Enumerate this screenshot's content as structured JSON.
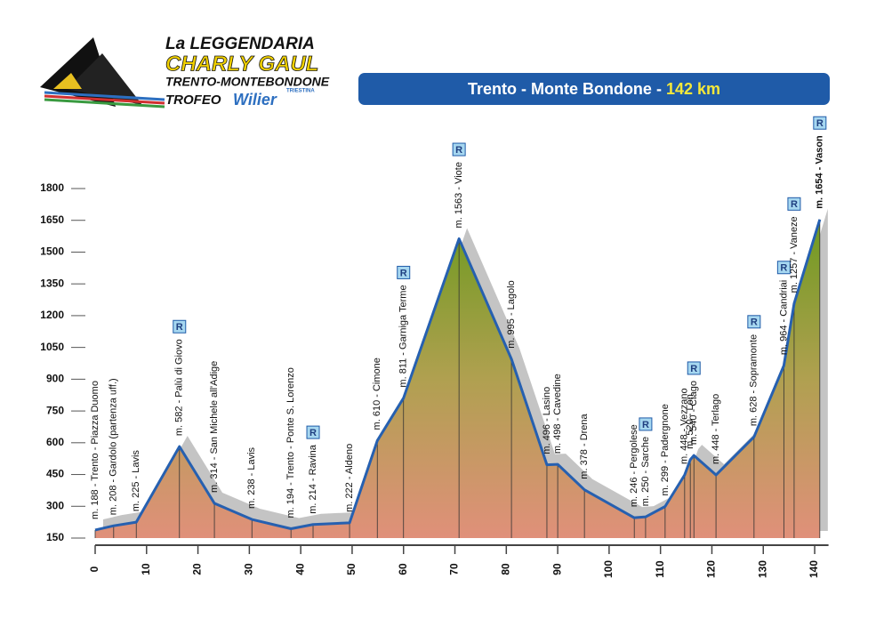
{
  "header": {
    "logo_line1": "La LEGGENDARIA",
    "logo_line2": "CHARLY GAUL",
    "logo_line3": "TRENTO-MONTEBONDONE",
    "logo_line4": "TROFEO",
    "logo_brand": "Wilier",
    "logo_brand_sub": "TRIESTINA",
    "banner": "Trento - Monte Bondone -",
    "banner_distance": "142 km"
  },
  "chart_data": {
    "type": "area",
    "x": [
      0,
      3.6,
      8,
      16.4,
      23.2,
      30.5,
      38.1,
      42.4,
      49.5,
      54.9,
      60,
      70.8,
      81,
      87.9,
      90,
      95.2,
      104.9,
      107.1,
      110.9,
      114.7,
      115.8,
      116.5,
      120.8,
      128.2,
      134,
      136,
      141
    ],
    "values": [
      188,
      208,
      225,
      582,
      314,
      238,
      194,
      214,
      222,
      610,
      811,
      1563,
      995,
      496,
      498,
      378,
      246,
      250,
      299,
      448,
      520,
      540,
      448,
      628,
      964,
      1257,
      1654
    ],
    "value_labels": [
      "m. 188 - Trento - Piazza Duomo",
      "m. 208 - Gardolo (partenza uff.)",
      "m. 225 - Lavis",
      "m. 582 - Palù di Giovo",
      "m. 314 - San Michele all'Adige",
      "m. 238 - Lavis",
      "m. 194 - Trento - Ponte S. Lorenzo",
      "m. 214 - Ravina",
      "m. 222 - Aldeno",
      "m. 610 - Cimone",
      "m. 811 - Garniga Terme",
      "m. 1563 - Viote",
      "m. 995 - Lagolo",
      "m. 496 - Lasino",
      "m. 498 - Cavedine",
      "m. 378 - Drena",
      "m. 246 - Pergolese",
      "m. 250 - Sarche",
      "m. 299 - Padergnone",
      "m. 448 - Vezzano",
      "m. 520 - Lon",
      "m. 540 - Ciago",
      "m. 448 - Terlago",
      "m. 628 - Sopramonte",
      "m. 964 - Candriai",
      "m. 1257 - Vaneze",
      "m. 1654 - Vason"
    ],
    "markers": [
      null,
      null,
      null,
      "R",
      null,
      null,
      null,
      "R",
      null,
      null,
      "R",
      "R",
      null,
      null,
      null,
      null,
      null,
      "R",
      null,
      null,
      null,
      "R",
      null,
      "R",
      "R",
      "R",
      "R"
    ],
    "color": "#2660b0",
    "xlim": [
      0,
      142
    ],
    "ylim": [
      150,
      1800
    ],
    "xticks": [
      0,
      10,
      20,
      30,
      40,
      50,
      60,
      70,
      80,
      90,
      100,
      110,
      120,
      130,
      140
    ],
    "yticks": [
      150,
      300,
      450,
      600,
      750,
      900,
      1050,
      1200,
      1350,
      1500,
      1650,
      1800
    ]
  }
}
